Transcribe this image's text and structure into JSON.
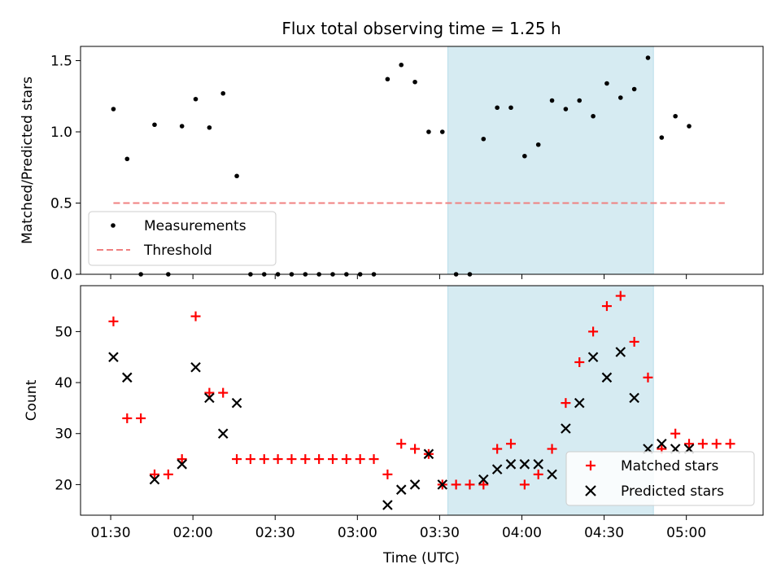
{
  "chart_data": [
    {
      "type": "scatter",
      "title": "Flux total observing time = 1.25 h",
      "xlabel": "",
      "ylabel": "Matched/Predicted stars",
      "ylim": [
        0,
        1.6
      ],
      "yticks": [
        0.0,
        0.5,
        1.0,
        1.5
      ],
      "ytick_labels": [
        "0.0",
        "0.5",
        "1.0",
        "1.5"
      ],
      "xlim": [
        79.0,
        328.0
      ],
      "highlight_span": [
        213.0,
        288.0
      ],
      "highlight_color": "#add8e6",
      "series": [
        {
          "name": "Measurements",
          "color": "#000000",
          "marker": "dot",
          "x": [
            91,
            96,
            101,
            106,
            111,
            116,
            121,
            126,
            131,
            136,
            141,
            146,
            151,
            156,
            161,
            166,
            171,
            176,
            181,
            186,
            191,
            196,
            201,
            206,
            211,
            216,
            221,
            226,
            231,
            236,
            241,
            246,
            251,
            256,
            261,
            266,
            271,
            276,
            281,
            286,
            291,
            296,
            301
          ],
          "y": [
            1.16,
            0.81,
            0,
            1.05,
            0,
            1.04,
            1.23,
            1.03,
            1.27,
            0.69,
            0,
            0,
            0,
            0,
            0,
            0,
            0,
            0,
            0,
            0,
            1.37,
            1.47,
            1.35,
            1.0,
            1.0,
            0,
            0,
            0.95,
            1.17,
            1.17,
            0.83,
            0.91,
            1.22,
            1.16,
            1.22,
            1.11,
            1.34,
            1.24,
            1.3,
            1.52,
            0.96,
            1.11,
            1.04
          ]
        },
        {
          "name": "Threshold",
          "color": "#f08080",
          "style": "dashed",
          "x": [
            91,
            314
          ],
          "y": [
            0.5,
            0.5
          ]
        }
      ],
      "legend": "lower-left"
    },
    {
      "type": "scatter",
      "title": "",
      "xlabel": "Time (UTC)",
      "ylabel": "Count",
      "ylim": [
        14,
        59
      ],
      "yticks": [
        20,
        30,
        40,
        50
      ],
      "ytick_labels": [
        "20",
        "30",
        "40",
        "50"
      ],
      "xlim": [
        79.0,
        328.0
      ],
      "xticks": [
        90,
        120,
        150,
        180,
        210,
        240,
        270,
        300
      ],
      "xtick_labels": [
        "01:30",
        "02:00",
        "02:30",
        "03:00",
        "03:30",
        "04:00",
        "04:30",
        "05:00"
      ],
      "highlight_span": [
        213.0,
        288.0
      ],
      "highlight_color": "#add8e6",
      "series": [
        {
          "name": "Matched stars",
          "color": "#ff0000",
          "marker": "plus",
          "x": [
            91,
            96,
            101,
            106,
            111,
            116,
            121,
            126,
            131,
            136,
            141,
            146,
            151,
            156,
            161,
            166,
            171,
            176,
            181,
            186,
            191,
            196,
            201,
            206,
            211,
            216,
            221,
            226,
            231,
            236,
            241,
            246,
            251,
            256,
            261,
            266,
            271,
            276,
            281,
            286,
            291,
            296,
            301,
            306,
            311,
            316
          ],
          "y": [
            52,
            33,
            33,
            22,
            22,
            25,
            53,
            38,
            38,
            25,
            25,
            25,
            25,
            25,
            25,
            25,
            25,
            25,
            25,
            25,
            22,
            28,
            27,
            26,
            20,
            20,
            20,
            20,
            27,
            28,
            20,
            22,
            27,
            36,
            44,
            50,
            55,
            57,
            48,
            41,
            27,
            30,
            28,
            28,
            28,
            28
          ]
        },
        {
          "name": "Predicted stars",
          "color": "#000000",
          "marker": "x",
          "x": [
            91,
            96,
            106,
            116,
            121,
            126,
            131,
            136,
            191,
            196,
            201,
            206,
            211,
            226,
            231,
            236,
            241,
            246,
            251,
            256,
            261,
            266,
            271,
            276,
            281,
            286,
            291,
            296,
            301
          ],
          "y": [
            45,
            41,
            21,
            24,
            43,
            37,
            30,
            36,
            16,
            19,
            20,
            26,
            20,
            21,
            23,
            24,
            24,
            24,
            22,
            31,
            36,
            45,
            41,
            46,
            37,
            27,
            28,
            27,
            27
          ]
        }
      ],
      "legend": "lower-right"
    }
  ]
}
